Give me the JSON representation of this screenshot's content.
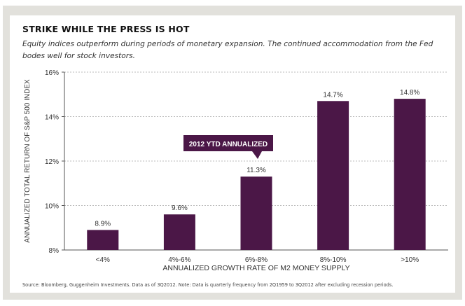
{
  "title": "STRIKE WHILE THE PRESS IS HOT",
  "subtitle": "Equity indices outperform during periods of monetary expansion. The continued accommodation from the Fed bodes well for stock investors.",
  "source": "Source: Bloomberg, Guggenheim Investments. Data as of 3Q2012. Note: Data is quarterly frequency from 2Q1959 to 3Q2012 after excluding recession periods.",
  "colors": {
    "bar": "#4b1747",
    "callout": "#4b1747"
  },
  "chart_data": {
    "type": "bar",
    "categories": [
      "<4%",
      "4%-6%",
      "6%-8%",
      "8%-10%",
      ">10%"
    ],
    "values": [
      8.9,
      9.6,
      11.3,
      14.7,
      14.8
    ],
    "data_labels": [
      "8.9%",
      "9.6%",
      "11.3%",
      "14.7%",
      "14.8%"
    ],
    "xlabel": "ANNUALIZED GROWTH RATE OF M2 MONEY SUPPLY",
    "ylabel": "ANNUALIZED TOTAL RETURN OF S&P 500 INDEX",
    "ylim": [
      8,
      16
    ],
    "yticks": [
      8,
      10,
      12,
      14,
      16
    ],
    "ytick_labels": [
      "8%",
      "10%",
      "12%",
      "14%",
      "16%"
    ],
    "grid": true,
    "annotation": {
      "text": "2012 YTD ANNUALIZED",
      "category": "6%-8%"
    }
  }
}
